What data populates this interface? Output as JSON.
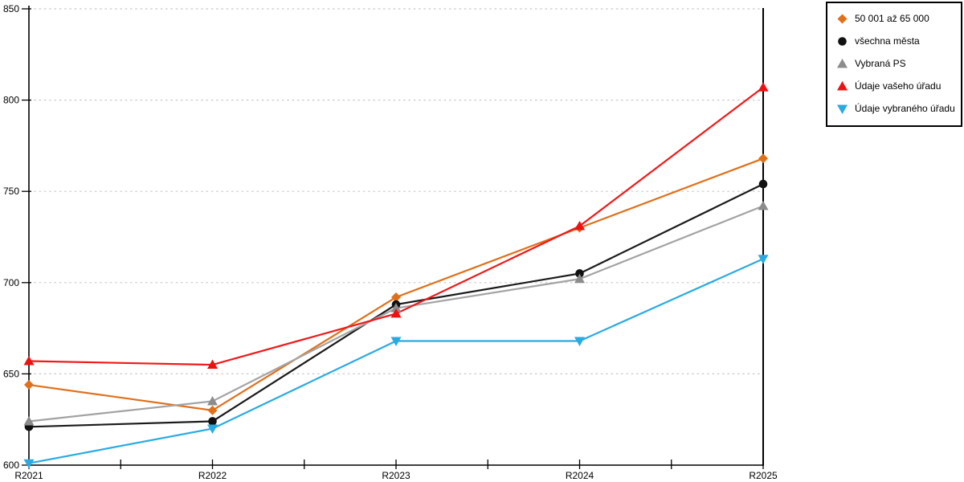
{
  "chart_data": {
    "type": "line",
    "title": "",
    "xlabel": "",
    "ylabel": "",
    "categories": [
      "R2021",
      "R2022",
      "R2023",
      "R2024",
      "R2025"
    ],
    "series": [
      {
        "name": "50 001 až 65 000",
        "marker": "diamond",
        "color": "#E1701A",
        "line_color": "#E1701A",
        "values": [
          644,
          630,
          692,
          730,
          768
        ]
      },
      {
        "name": "všechna města",
        "marker": "circle",
        "color": "#111111",
        "line_color": "#1A1A1A",
        "values": [
          621,
          624,
          688,
          705,
          754
        ]
      },
      {
        "name": "Vybraná PS",
        "marker": "triangle-up",
        "color": "#8C8C8C",
        "line_color": "#A3A3A3",
        "values": [
          624,
          635,
          686,
          702,
          742
        ]
      },
      {
        "name": "Údaje vašeho úřadu",
        "marker": "triangle-up",
        "color": "#EE1111",
        "line_color": "#F21818",
        "values": [
          657,
          655,
          683,
          731,
          807
        ]
      },
      {
        "name": "Údaje vybraného úřadu",
        "marker": "triangle-down",
        "color": "#29ABE2",
        "line_color": "#29ABE2",
        "values": [
          601,
          620,
          668,
          668,
          713
        ]
      }
    ],
    "ylim": [
      600,
      850
    ],
    "y_ticks": [
      600,
      650,
      700,
      750,
      800,
      850
    ],
    "grid": "horizontal-dotted",
    "legend_position": "top-right",
    "axis_color": "#000000",
    "grid_color": "#C8C8C8"
  }
}
